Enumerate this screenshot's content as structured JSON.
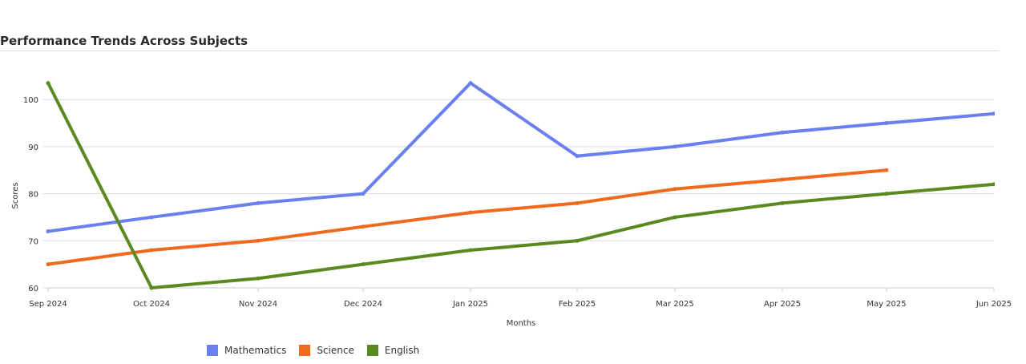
{
  "title": "Performance Trends Across Subjects",
  "chart_data": {
    "type": "line",
    "categories": [
      "Sep 2024",
      "Oct 2024",
      "Nov 2024",
      "Dec 2024",
      "Jan 2025",
      "Feb 2025",
      "Mar 2025",
      "Apr 2025",
      "May 2025",
      "Jun 2025"
    ],
    "xlabel": "Months",
    "ylabel": "Scores",
    "ylim": [
      60,
      103.5
    ],
    "yticks": [
      60,
      70,
      80,
      90,
      100
    ],
    "grid": true,
    "legend_position": "bottom",
    "series": [
      {
        "name": "Mathematics",
        "color": "#6a7ff0",
        "values": [
          72,
          75,
          78,
          80,
          103.5,
          88,
          90,
          93,
          95,
          97
        ]
      },
      {
        "name": "Science",
        "color": "#f06a1d",
        "values": [
          65,
          68,
          70,
          73,
          76,
          78,
          81,
          83,
          85,
          null
        ]
      },
      {
        "name": "English",
        "color": "#5a8a1f",
        "values": [
          103.5,
          60,
          62,
          65,
          68,
          70,
          75,
          78,
          80,
          82
        ]
      }
    ]
  }
}
